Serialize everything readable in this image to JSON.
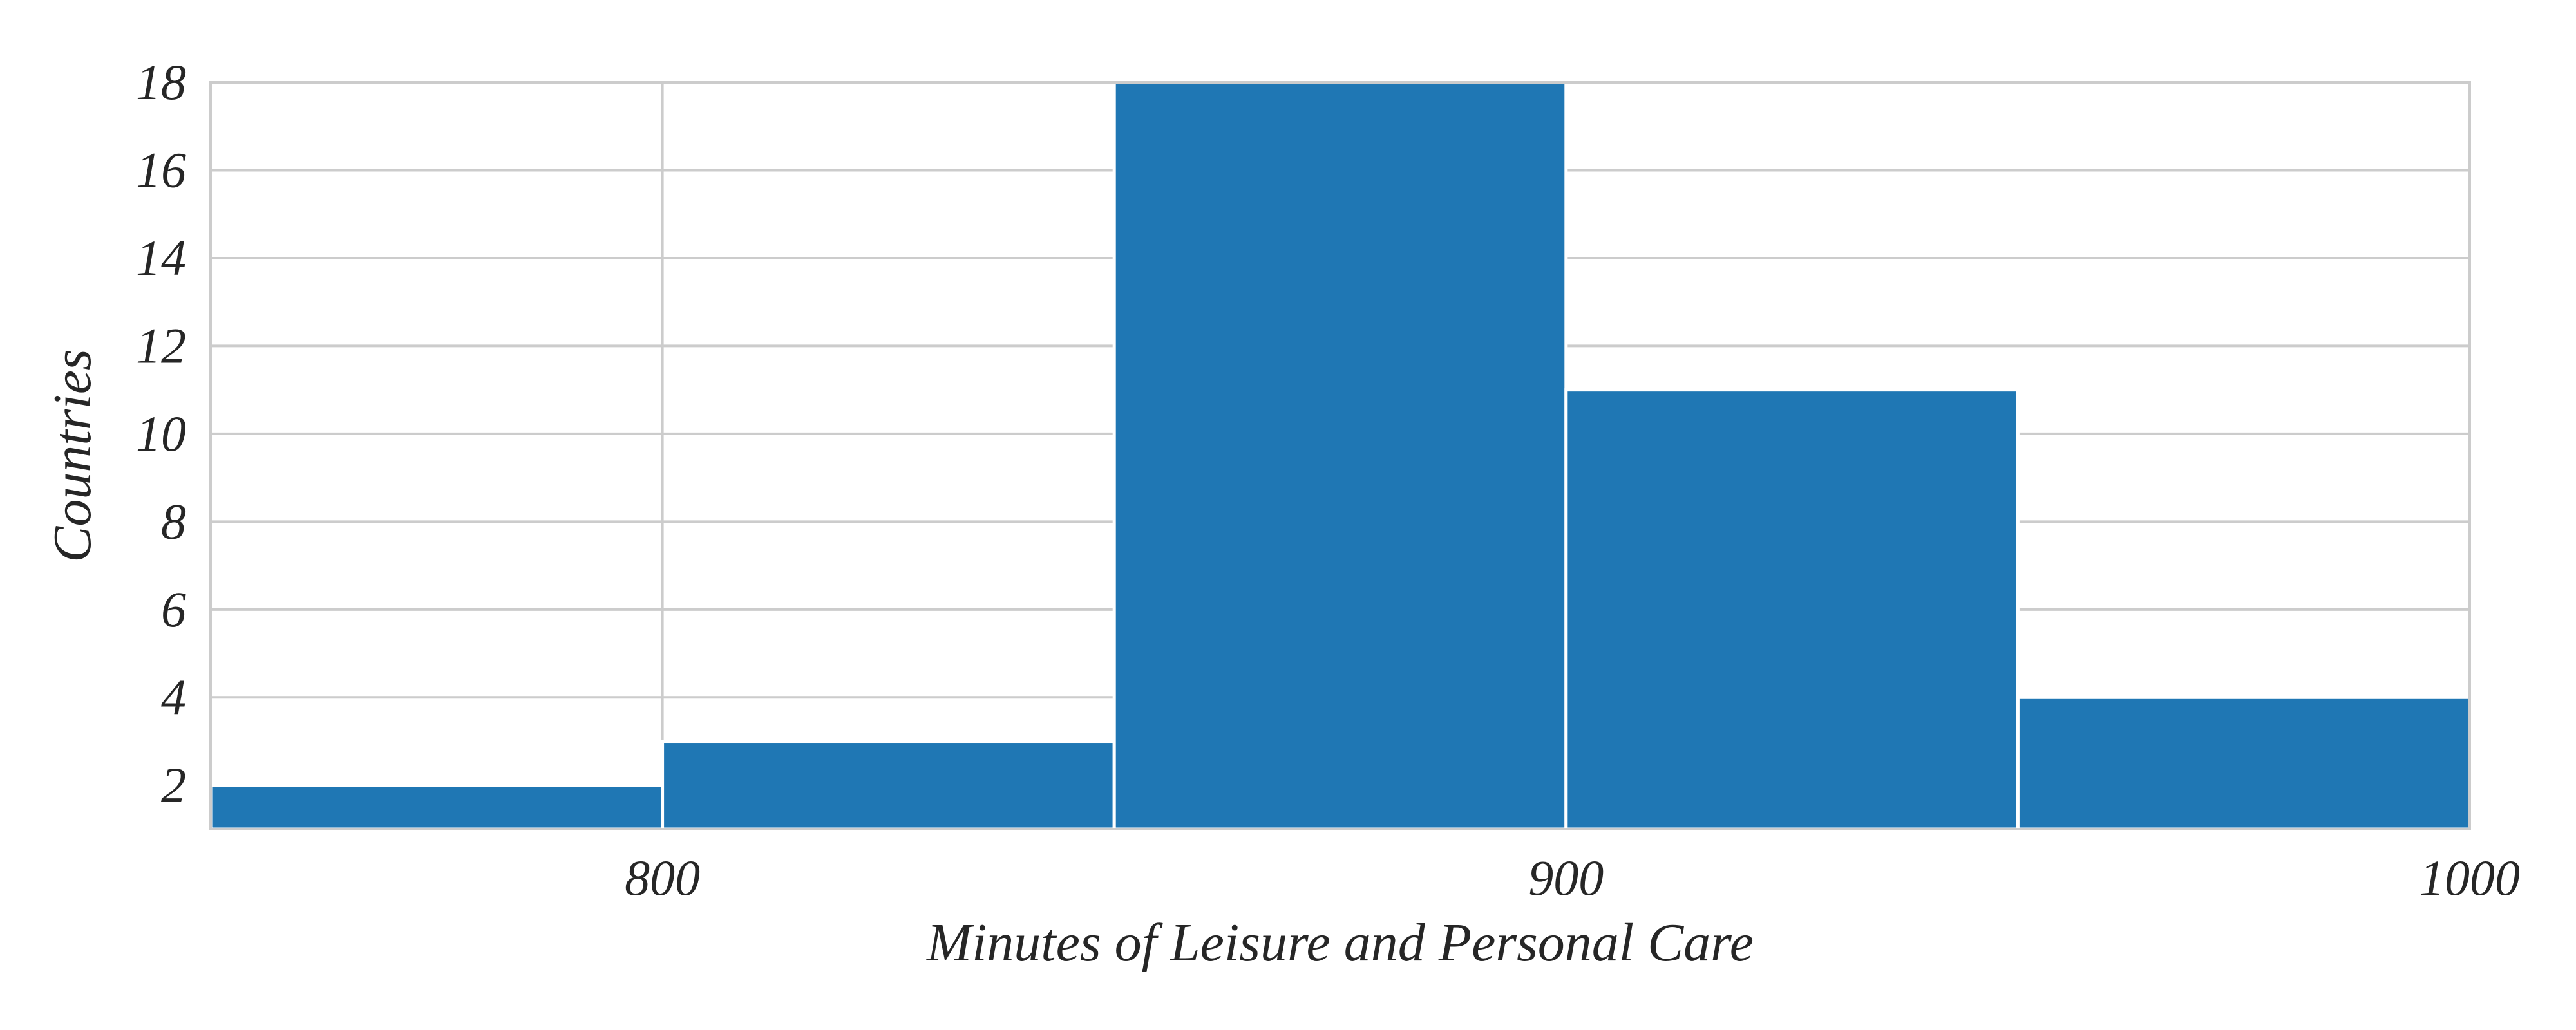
{
  "chart_data": {
    "type": "bar",
    "chart_kind": "histogram",
    "bins": [
      {
        "start": 750,
        "end": 800,
        "count": 2
      },
      {
        "start": 800,
        "end": 850,
        "count": 3
      },
      {
        "start": 850,
        "end": 900,
        "count": 18
      },
      {
        "start": 900,
        "end": 950,
        "count": 11
      },
      {
        "start": 950,
        "end": 1000,
        "count": 4
      }
    ],
    "xlabel": "Minutes of Leisure and Personal Care",
    "ylabel": "Countries",
    "xlim": [
      750,
      1000
    ],
    "ylim": [
      1,
      18
    ],
    "xticks": [
      800,
      900,
      1000
    ],
    "xtick_labels": [
      "800",
      "900",
      "1000"
    ],
    "yticks": [
      2,
      4,
      6,
      8,
      10,
      12,
      14,
      16,
      18
    ],
    "ytick_labels": [
      "2",
      "4",
      "6",
      "8",
      "10",
      "12",
      "14",
      "16",
      "18"
    ],
    "grid": true,
    "bar_color": "#1f77b4",
    "grid_color": "#cccccc",
    "text_color": "#262626"
  }
}
